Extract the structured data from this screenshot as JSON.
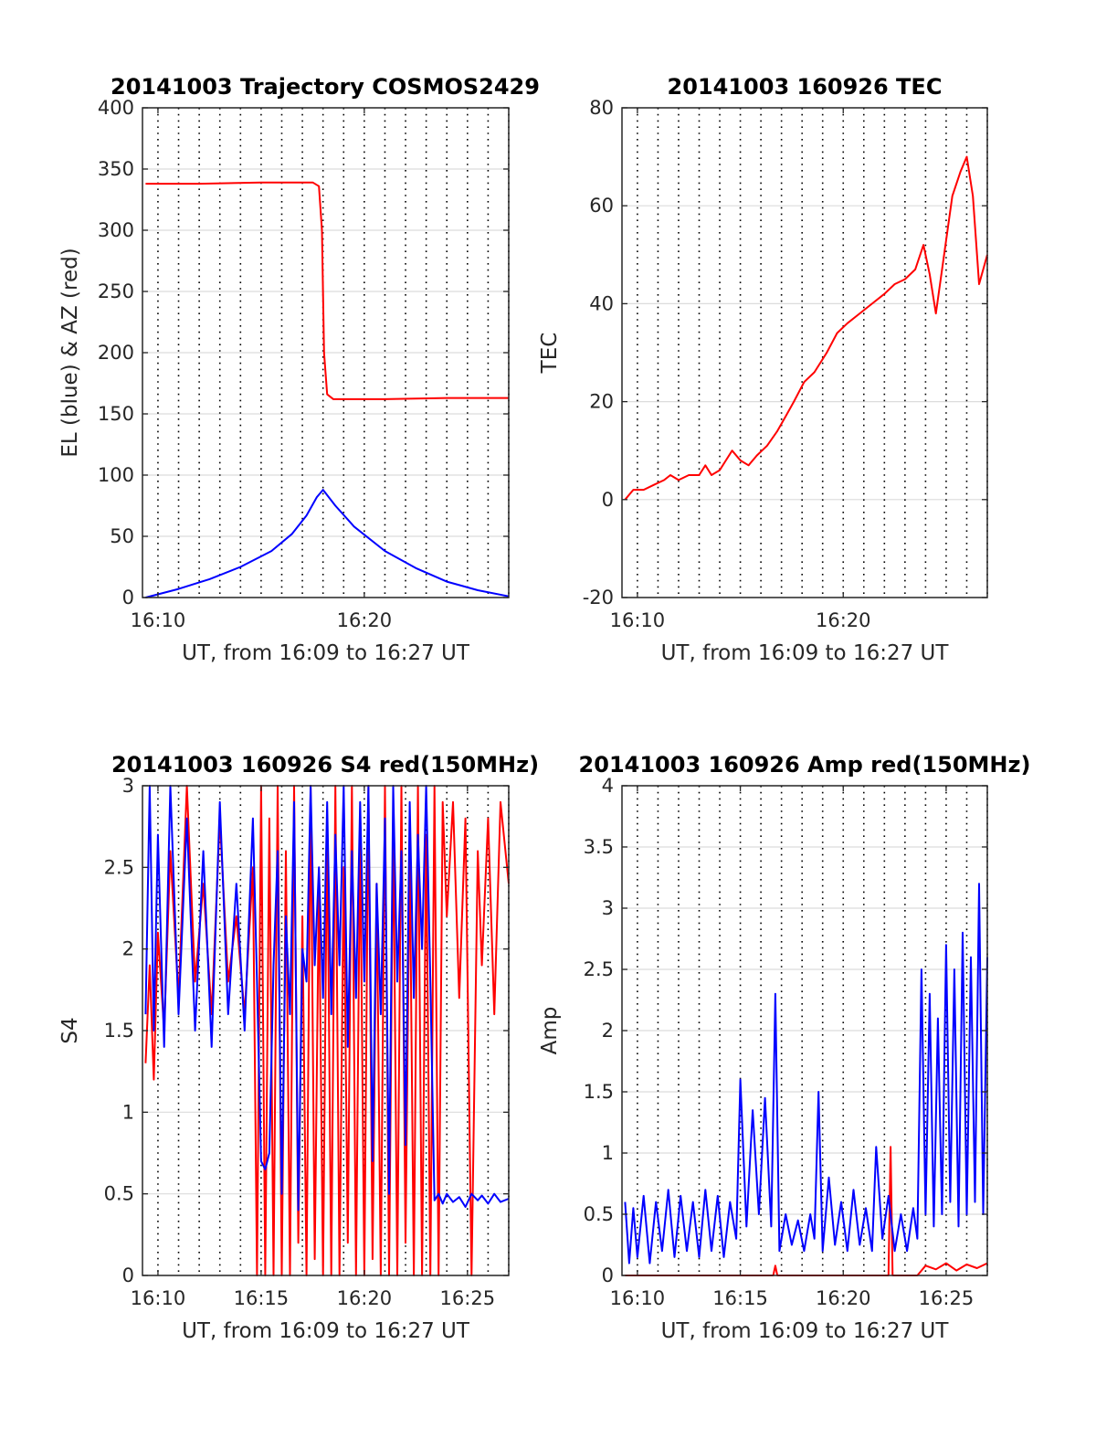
{
  "chart_data": [
    {
      "type": "line",
      "title": "20141003 Trajectory COSMOS2429",
      "xlabel": "UT, from 16:09 to 16:27 UT",
      "ylabel": "EL (blue) & AZ (red)",
      "x_unit": "minutes after 16:00 UT",
      "xlim": [
        9.25,
        27.0
      ],
      "ylim": [
        0,
        400
      ],
      "x_ticks": [
        10,
        20
      ],
      "x_tick_labels": [
        "16:10",
        "16:20"
      ],
      "y_ticks": [
        0,
        50,
        100,
        150,
        200,
        250,
        300,
        350,
        400
      ],
      "y_tick_labels": [
        "0",
        "50",
        "100",
        "150",
        "200",
        "250",
        "300",
        "350",
        "400"
      ],
      "minor_x_grid_step": 1,
      "series": [
        {
          "color": "#ff0000",
          "x": [
            9.4,
            12.0,
            15.0,
            17.5,
            17.8,
            17.95,
            18.05,
            18.2,
            18.5,
            21.0,
            24.0,
            27.0
          ],
          "values": [
            338,
            338,
            339,
            339,
            336,
            300,
            200,
            166,
            162,
            162,
            163,
            163
          ]
        },
        {
          "color": "#0000ff",
          "x": [
            9.4,
            11.0,
            12.5,
            14.0,
            15.5,
            16.5,
            17.2,
            17.7,
            18.0,
            18.6,
            19.5,
            21.0,
            22.5,
            24.0,
            25.5,
            27.0
          ],
          "values": [
            0,
            7,
            15,
            25,
            38,
            52,
            67,
            82,
            88,
            75,
            58,
            38,
            24,
            13,
            6,
            1
          ]
        }
      ]
    },
    {
      "type": "line",
      "title": "20141003 160926 TEC",
      "xlabel": "UT, from 16:09 to 16:27 UT",
      "ylabel": "TEC",
      "x_unit": "minutes after 16:00 UT",
      "xlim": [
        9.25,
        27.0
      ],
      "ylim": [
        -20,
        80
      ],
      "x_ticks": [
        10,
        20
      ],
      "x_tick_labels": [
        "16:10",
        "16:20"
      ],
      "y_ticks": [
        -20,
        0,
        20,
        40,
        60,
        80
      ],
      "y_tick_labels": [
        "-20",
        "0",
        "20",
        "40",
        "60",
        "80"
      ],
      "minor_x_grid_step": 1,
      "series": [
        {
          "color": "#ff0000",
          "x": [
            9.4,
            9.8,
            10.3,
            10.8,
            11.3,
            11.6,
            12.0,
            12.5,
            13.0,
            13.3,
            13.6,
            14.0,
            14.3,
            14.6,
            15.0,
            15.4,
            15.8,
            16.3,
            16.8,
            17.2,
            17.6,
            18.1,
            18.6,
            19.2,
            19.7,
            20.2,
            20.8,
            21.4,
            22.0,
            22.5,
            23.0,
            23.5,
            23.9,
            24.2,
            24.5,
            24.9,
            25.3,
            25.7,
            26.0,
            26.3,
            26.6,
            27.0
          ],
          "values": [
            0,
            2,
            2,
            3,
            4,
            5,
            4,
            5,
            5,
            7,
            5,
            6,
            8,
            10,
            8,
            7,
            9,
            11,
            14,
            17,
            20,
            24,
            26,
            30,
            34,
            36,
            38,
            40,
            42,
            44,
            45,
            47,
            52,
            46,
            38,
            50,
            62,
            67,
            70,
            62,
            44,
            50
          ]
        }
      ]
    },
    {
      "type": "line",
      "title": "20141003 160926 S4 red(150MHz)",
      "xlabel": "UT, from 16:09 to 16:27 UT",
      "ylabel": "S4",
      "x_unit": "minutes after 16:00 UT",
      "xlim": [
        9.25,
        27.0
      ],
      "ylim": [
        0,
        3
      ],
      "x_ticks": [
        10,
        15,
        20,
        25
      ],
      "x_tick_labels": [
        "16:10",
        "16:15",
        "16:20",
        "16:25"
      ],
      "y_ticks": [
        0,
        0.5,
        1,
        1.5,
        2,
        2.5,
        3
      ],
      "y_tick_labels": [
        "0",
        "0.5",
        "1",
        "1.5",
        "2",
        "2.5",
        "3"
      ],
      "minor_x_grid_step": 1,
      "series": [
        {
          "color": "#ff0000",
          "x": [
            9.4,
            9.6,
            9.8,
            10.0,
            10.3,
            10.6,
            11.0,
            11.4,
            11.8,
            12.2,
            12.6,
            13.0,
            13.4,
            13.8,
            14.2,
            14.6,
            14.8,
            15.0,
            15.2,
            15.4,
            15.6,
            15.8,
            16.0,
            16.2,
            16.4,
            16.6,
            16.8,
            17.0,
            17.2,
            17.4,
            17.6,
            17.8,
            18.0,
            18.2,
            18.4,
            18.6,
            18.8,
            19.0,
            19.2,
            19.4,
            19.6,
            19.8,
            20.0,
            20.2,
            20.4,
            20.6,
            20.8,
            21.0,
            21.2,
            21.4,
            21.6,
            21.8,
            22.0,
            22.2,
            22.4,
            22.6,
            22.8,
            23.0,
            23.2,
            23.4,
            23.6,
            23.8,
            24.0,
            24.3,
            24.6,
            24.9,
            25.2,
            25.5,
            25.7,
            26.0,
            26.3,
            26.6,
            27.0
          ],
          "values": [
            1.3,
            1.9,
            1.2,
            2.1,
            1.5,
            2.6,
            1.7,
            3.0,
            1.8,
            2.4,
            1.6,
            2.8,
            1.8,
            2.2,
            1.6,
            2.5,
            0.0,
            3.0,
            0.0,
            2.8,
            0.0,
            3.0,
            0.0,
            2.6,
            0.0,
            3.0,
            0.2,
            2.2,
            0.0,
            3.0,
            0.1,
            2.4,
            0.0,
            2.8,
            0.0,
            3.0,
            0.0,
            2.5,
            0.2,
            3.0,
            0.0,
            2.7,
            0.0,
            3.0,
            0.1,
            2.4,
            0.0,
            3.0,
            0.0,
            2.8,
            0.0,
            3.0,
            0.2,
            2.6,
            0.0,
            3.0,
            0.0,
            2.7,
            0.0,
            3.0,
            0.0,
            2.9,
            2.2,
            2.9,
            1.7,
            2.8,
            0.0,
            2.6,
            1.9,
            2.8,
            1.6,
            2.9,
            2.4
          ]
        },
        {
          "color": "#0000ff",
          "x": [
            9.4,
            9.6,
            9.8,
            10.0,
            10.3,
            10.6,
            11.0,
            11.4,
            11.8,
            12.2,
            12.6,
            13.0,
            13.4,
            13.8,
            14.2,
            14.6,
            14.8,
            15.0,
            15.2,
            15.4,
            15.6,
            15.8,
            16.0,
            16.2,
            16.4,
            16.6,
            16.8,
            17.0,
            17.2,
            17.4,
            17.6,
            17.8,
            18.0,
            18.2,
            18.4,
            18.6,
            18.8,
            19.0,
            19.2,
            19.4,
            19.6,
            19.8,
            20.0,
            20.2,
            20.4,
            20.6,
            20.8,
            21.0,
            21.2,
            21.4,
            21.6,
            21.8,
            22.0,
            22.2,
            22.4,
            22.6,
            22.8,
            23.0,
            23.2,
            23.4,
            23.6,
            23.8,
            24.0,
            24.3,
            24.6,
            24.9,
            25.2,
            25.5,
            25.7,
            26.0,
            26.3,
            26.6,
            27.0
          ],
          "values": [
            1.6,
            3.0,
            1.5,
            2.7,
            1.4,
            3.0,
            1.6,
            2.8,
            1.5,
            2.6,
            1.4,
            2.9,
            1.6,
            2.4,
            1.5,
            2.8,
            1.8,
            0.7,
            0.65,
            0.75,
            1.9,
            2.6,
            0.5,
            2.2,
            1.6,
            2.9,
            0.4,
            2.0,
            1.8,
            3.0,
            1.9,
            2.5,
            1.7,
            2.9,
            1.6,
            2.7,
            1.9,
            3.0,
            1.4,
            2.6,
            1.7,
            2.9,
            1.8,
            3.0,
            0.7,
            2.4,
            1.6,
            2.8,
            0.5,
            3.0,
            1.8,
            2.6,
            0.8,
            2.9,
            1.7,
            2.7,
            2.0,
            3.0,
            1.8,
            0.46,
            0.5,
            0.44,
            0.5,
            0.45,
            0.48,
            0.42,
            0.5,
            0.46,
            0.49,
            0.44,
            0.5,
            0.45,
            0.47
          ]
        }
      ]
    },
    {
      "type": "line",
      "title": "20141003 160926 Amp red(150MHz)",
      "xlabel": "UT, from 16:09 to 16:27 UT",
      "ylabel": "Amp",
      "x_unit": "minutes after 16:00 UT",
      "xlim": [
        9.25,
        27.0
      ],
      "ylim": [
        0,
        4
      ],
      "x_ticks": [
        10,
        15,
        20,
        25
      ],
      "x_tick_labels": [
        "16:10",
        "16:15",
        "16:20",
        "16:25"
      ],
      "y_ticks": [
        0,
        0.5,
        1,
        1.5,
        2,
        2.5,
        3,
        3.5,
        4
      ],
      "y_tick_labels": [
        "0",
        "0.5",
        "1",
        "1.5",
        "2",
        "2.5",
        "3",
        "3.5",
        "4"
      ],
      "minor_x_grid_step": 1,
      "series": [
        {
          "color": "#ff0000",
          "x": [
            9.4,
            16.6,
            16.7,
            16.8,
            22.2,
            22.3,
            22.4,
            23.6,
            24.0,
            24.5,
            25.0,
            25.5,
            26.0,
            26.5,
            27.0
          ],
          "values": [
            0,
            0,
            0.08,
            0,
            0,
            1.05,
            0,
            0,
            0.08,
            0.05,
            0.1,
            0.04,
            0.09,
            0.06,
            0.1
          ]
        },
        {
          "color": "#0000ff",
          "x": [
            9.4,
            9.6,
            9.8,
            10.0,
            10.3,
            10.6,
            10.9,
            11.2,
            11.5,
            11.8,
            12.1,
            12.4,
            12.7,
            13.0,
            13.3,
            13.6,
            13.9,
            14.2,
            14.5,
            14.8,
            15.0,
            15.3,
            15.6,
            15.9,
            16.2,
            16.5,
            16.7,
            16.9,
            17.2,
            17.5,
            17.8,
            18.1,
            18.4,
            18.6,
            18.8,
            19.0,
            19.3,
            19.6,
            19.9,
            20.2,
            20.5,
            20.8,
            21.1,
            21.4,
            21.6,
            21.9,
            22.2,
            22.5,
            22.8,
            23.1,
            23.4,
            23.6,
            23.8,
            24.0,
            24.2,
            24.4,
            24.6,
            24.8,
            25.0,
            25.2,
            25.4,
            25.6,
            25.8,
            26.0,
            26.2,
            26.4,
            26.6,
            26.8,
            27.0
          ],
          "values": [
            0.6,
            0.1,
            0.55,
            0.15,
            0.65,
            0.1,
            0.6,
            0.2,
            0.7,
            0.15,
            0.65,
            0.2,
            0.6,
            0.15,
            0.7,
            0.2,
            0.65,
            0.15,
            0.6,
            0.3,
            1.6,
            0.4,
            1.35,
            0.5,
            1.45,
            0.4,
            2.3,
            0.2,
            0.5,
            0.25,
            0.45,
            0.2,
            0.5,
            0.3,
            1.5,
            0.2,
            0.8,
            0.25,
            0.6,
            0.2,
            0.7,
            0.25,
            0.55,
            0.2,
            1.05,
            0.3,
            0.65,
            0.2,
            0.5,
            0.2,
            0.55,
            0.3,
            2.5,
            0.5,
            2.3,
            0.4,
            2.1,
            0.5,
            2.7,
            0.6,
            2.5,
            0.4,
            2.8,
            0.5,
            2.6,
            0.6,
            3.2,
            0.5,
            2.6
          ]
        }
      ]
    }
  ]
}
